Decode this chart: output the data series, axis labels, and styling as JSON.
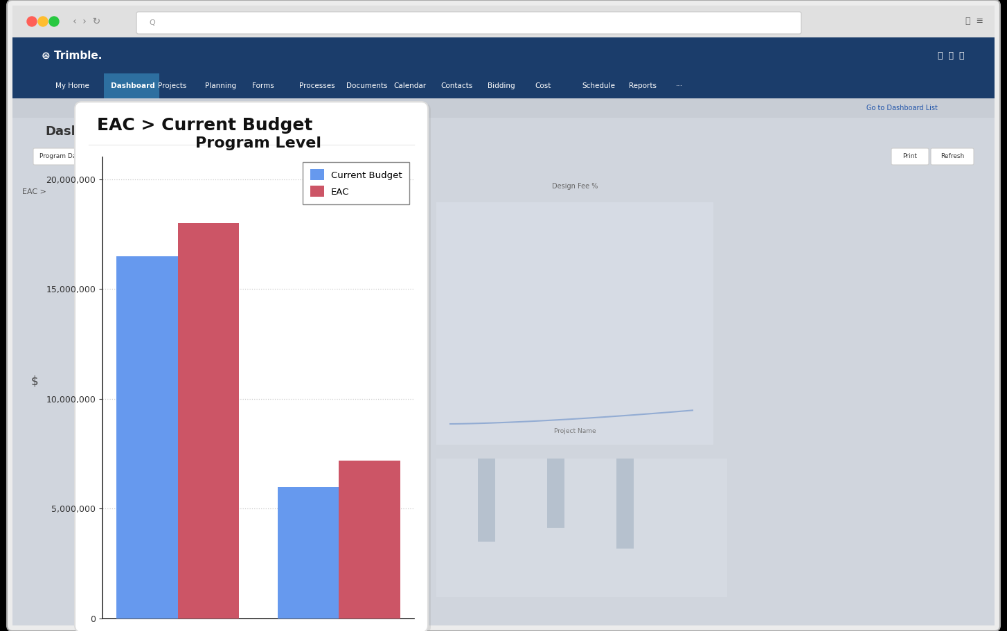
{
  "title": "Program Level",
  "header": "EAC > Current Budget",
  "current_budget": [
    16500000,
    6000000
  ],
  "eac": [
    18000000,
    7200000
  ],
  "bar_color_budget": "#6699EE",
  "bar_color_eac": "#CC5566",
  "ylim_max": 21000000,
  "yticks": [
    0,
    5000000,
    10000000,
    15000000,
    20000000
  ],
  "legend_labels": [
    "Current Budget",
    "EAC"
  ],
  "browser_chrome_bg": "#e8e8e8",
  "browser_tab_bg": "#f0f0f0",
  "nav_bg": "#1b3d6b",
  "nav_highlight": "#2d6fa0",
  "page_bg": "#d0d5dd",
  "dialog_bg": "#ffffff",
  "black_border": "#000000",
  "title_fontsize": 16,
  "header_fontsize": 18,
  "ytick_fontsize": 9,
  "grid_color": "#cccccc",
  "tick_color": "#333333",
  "ylabel_symbol": "$",
  "fig_width": 14.54,
  "fig_height": 9.11,
  "fig_dpi": 100,
  "traffic_red": "#ff5f57",
  "traffic_yellow": "#ffbd2e",
  "traffic_green": "#28c840",
  "url_bar_bg": "#ffffff",
  "url_border": "#cccccc",
  "right_chart_line": "#7799cc",
  "right_bg": "#d8dde6"
}
